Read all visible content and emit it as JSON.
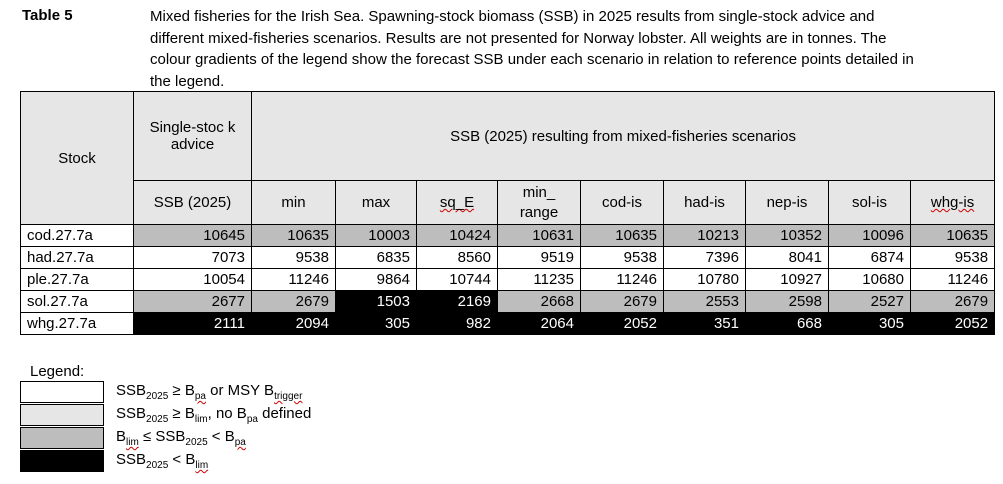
{
  "table_label": "Table 5",
  "caption": "Mixed fisheries for the Irish Sea. Spawning-stock biomass (SSB) in 2025 results from single-stock advice and different mixed-fisheries scenarios. Results are not presented for Norway lobster. All weights are in tonnes. The colour gradients of the legend show the forecast SSB under each scenario in relation to reference points detailed in the legend.",
  "header": {
    "stock": "Stock",
    "single_stock": "Single-stoc k advice",
    "scenarios": "SSB (2025) resulting from mixed-fisheries scenarios",
    "columns": [
      "SSB (2025)",
      "min",
      "max",
      "sq_E",
      "min_ range",
      "cod-is",
      "had-is",
      "nep-is",
      "sol-is",
      "whg-is"
    ]
  },
  "rows": [
    {
      "stock": "cod.27.7a",
      "values": [
        "10645",
        "10635",
        "10003",
        "10424",
        "10631",
        "10635",
        "10213",
        "10352",
        "10096",
        "10635"
      ],
      "status": [
        "grey",
        "grey",
        "grey",
        "grey",
        "grey",
        "grey",
        "grey",
        "grey",
        "grey",
        "grey"
      ]
    },
    {
      "stock": "had.27.7a",
      "values": [
        "7073",
        "9538",
        "6835",
        "8560",
        "9519",
        "9538",
        "7396",
        "8041",
        "6874",
        "9538"
      ],
      "status": [
        "white",
        "white",
        "white",
        "white",
        "white",
        "white",
        "white",
        "white",
        "white",
        "white"
      ]
    },
    {
      "stock": "ple.27.7a",
      "values": [
        "10054",
        "11246",
        "9864",
        "10744",
        "11235",
        "11246",
        "10780",
        "10927",
        "10680",
        "11246"
      ],
      "status": [
        "white",
        "white",
        "white",
        "white",
        "white",
        "white",
        "white",
        "white",
        "white",
        "white"
      ]
    },
    {
      "stock": "sol.27.7a",
      "values": [
        "2677",
        "2679",
        "1503",
        "2169",
        "2668",
        "2679",
        "2553",
        "2598",
        "2527",
        "2679"
      ],
      "status": [
        "grey",
        "grey",
        "black",
        "black",
        "grey",
        "grey",
        "grey",
        "grey",
        "grey",
        "grey"
      ]
    },
    {
      "stock": "whg.27.7a",
      "values": [
        "2111",
        "2094",
        "305",
        "982",
        "2064",
        "2052",
        "351",
        "668",
        "305",
        "2052"
      ],
      "status": [
        "black",
        "black",
        "black",
        "black",
        "black",
        "black",
        "black",
        "black",
        "black",
        "black"
      ]
    }
  ],
  "legend": {
    "title": "Legend:",
    "items": [
      {
        "color": "#ffffff",
        "text": "SSB2025 ≥ Bpa or MSY Btrigger"
      },
      {
        "color": "#e6e6e6",
        "text": "SSB2025 ≥ Blim, no Bpa defined"
      },
      {
        "color": "#bdbdbd",
        "text": "Blim ≤ SSB2025 < Bpa"
      },
      {
        "color": "#000000",
        "text": "SSB2025 < Blim"
      }
    ]
  }
}
